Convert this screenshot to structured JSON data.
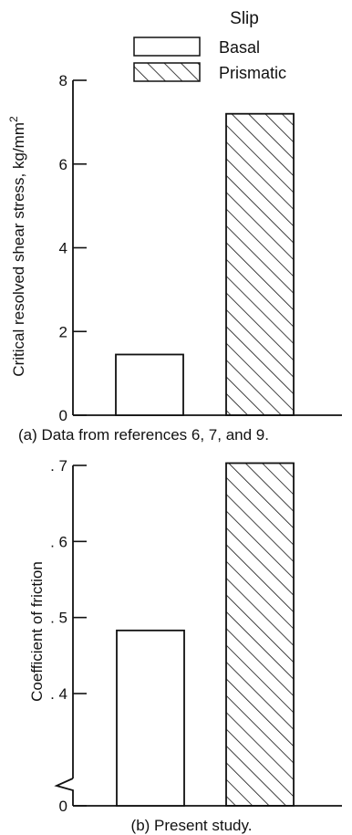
{
  "legend": {
    "title": "Slip",
    "items": [
      {
        "label": "Basal",
        "pattern": "none"
      },
      {
        "label": "Prismatic",
        "pattern": "hatch"
      }
    ]
  },
  "colors": {
    "ink": "#111111",
    "background": "#ffffff"
  },
  "chart_data": [
    {
      "type": "bar",
      "categories": [
        "Basal",
        "Prismatic"
      ],
      "values": [
        1.45,
        7.2
      ],
      "ylabel": "Critical resolved shear stress, kg/mm",
      "ylabel_superscript": "2",
      "ylim": [
        0,
        8
      ],
      "yticks": [
        0,
        2,
        4,
        6,
        8
      ],
      "ytick_labels": [
        "0",
        "2",
        "4",
        "6",
        "8"
      ],
      "caption": "(a) Data from references 6, 7, and 9.",
      "grid": false,
      "legend_position": "top-right"
    },
    {
      "type": "bar",
      "categories": [
        "Basal",
        "Prismatic"
      ],
      "values": [
        0.483,
        0.703
      ],
      "ylabel": "Coefficient of friction",
      "ylim": [
        0,
        0.7
      ],
      "axis_break": true,
      "yticks": [
        0,
        0.4,
        0.5,
        0.6,
        0.7
      ],
      "ytick_labels": [
        "0",
        ". 4",
        ". 5",
        ". 6",
        ". 7"
      ],
      "caption": "(b) Present study.",
      "grid": false
    }
  ]
}
